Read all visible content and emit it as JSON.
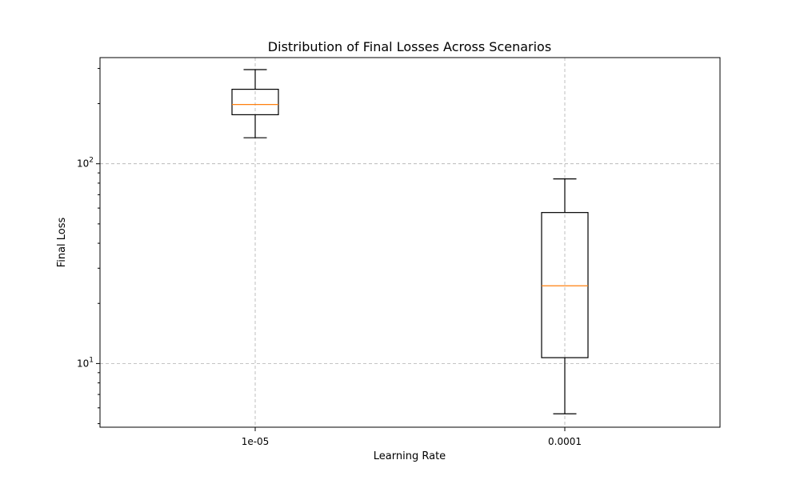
{
  "chart_data": {
    "type": "box",
    "title": "Distribution of Final Losses Across Scenarios",
    "xlabel": "Learning Rate",
    "ylabel": "Final Loss",
    "yscale": "log",
    "ylim": [
      4.8,
      340
    ],
    "grid": true,
    "categories": [
      "1e-05",
      "0.0001"
    ],
    "boxes": [
      {
        "category": "1e-05",
        "whisker_low": 135,
        "q1": 176,
        "median": 198,
        "q3": 236,
        "whisker_high": 296
      },
      {
        "category": "0.0001",
        "whisker_low": 5.6,
        "q1": 10.7,
        "median": 24.5,
        "q3": 57,
        "whisker_high": 84
      }
    ],
    "y_ticks": [
      {
        "value": 10,
        "base": "10",
        "exp": "1"
      },
      {
        "value": 100,
        "base": "10",
        "exp": "2"
      }
    ],
    "colors": {
      "median": "#ff7f0e",
      "box": "#000000",
      "grid": "#b0b0b0"
    }
  }
}
